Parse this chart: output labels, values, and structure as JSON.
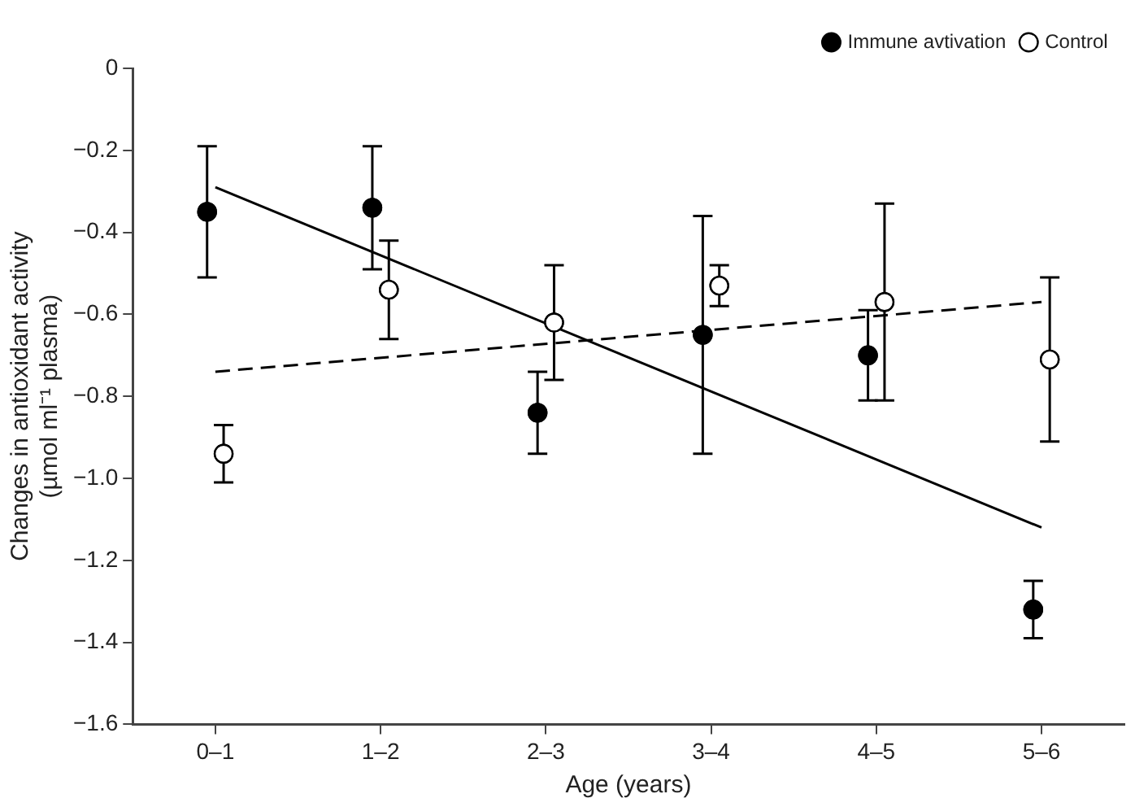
{
  "chart_data": {
    "type": "scatter",
    "xlabel": "Age (years)",
    "ylabel": "Changes in antioxidant activity\n(µmol ml⁻¹ plasma)",
    "categories": [
      "0–1",
      "1–2",
      "2–3",
      "3–4",
      "4–5",
      "5–6"
    ],
    "ylim": [
      -1.6,
      0
    ],
    "yticks": [
      {
        "value": -1.6,
        "label": "−1.6"
      },
      {
        "value": -1.4,
        "label": "−1.4"
      },
      {
        "value": -1.2,
        "label": "−1.2"
      },
      {
        "value": -1.0,
        "label": "−1.0"
      },
      {
        "value": -0.8,
        "label": "−0.8"
      },
      {
        "value": -0.6,
        "label": "−0.6"
      },
      {
        "value": -0.4,
        "label": "−0.4"
      },
      {
        "value": -0.2,
        "label": "−0.2"
      },
      {
        "value": 0,
        "label": "0"
      }
    ],
    "series": [
      {
        "name": "Immune avtivation",
        "color": "#000000",
        "values": [
          -0.35,
          -0.34,
          -0.84,
          -0.65,
          -0.7,
          -1.32
        ],
        "errors": [
          [
            -0.51,
            -0.19
          ],
          [
            -0.49,
            -0.19
          ],
          [
            -0.94,
            -0.74
          ],
          [
            -0.94,
            -0.36
          ],
          [
            -0.81,
            -0.59
          ],
          [
            -1.39,
            -1.25
          ]
        ]
      },
      {
        "name": "Control",
        "color": "#ffffff",
        "values": [
          -0.94,
          -0.54,
          -0.62,
          -0.53,
          -0.57,
          -0.71
        ],
        "errors": [
          [
            -1.01,
            -0.87
          ],
          [
            -0.66,
            -0.42
          ],
          [
            -0.76,
            -0.48
          ],
          [
            -0.58,
            -0.48
          ],
          [
            -0.81,
            -0.33
          ],
          [
            -0.91,
            -0.51
          ]
        ]
      },
      {
        "type": "line",
        "marker": "none",
        "color": "#000000",
        "line_style": "solid",
        "x": [
          "0–1",
          "5–6"
        ],
        "values": [
          -0.29,
          -1.12
        ]
      },
      {
        "type": "line",
        "marker": "none",
        "color": "#000000",
        "line_style": "dashed",
        "x": [
          "0–1",
          "5–6"
        ],
        "values": [
          -0.74,
          -0.57
        ]
      }
    ],
    "legend": "top right",
    "grid": false,
    "marker": "circle"
  }
}
